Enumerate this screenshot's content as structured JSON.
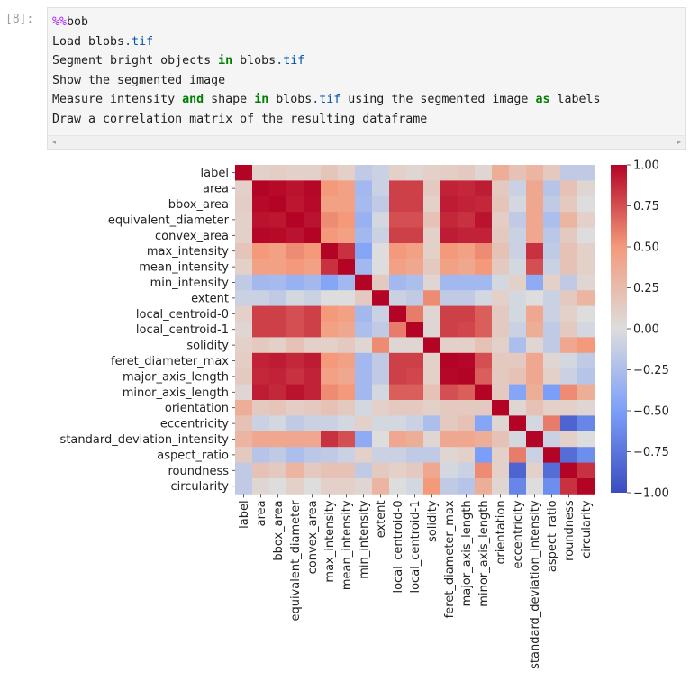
{
  "cell": {
    "prompt": "[8]:",
    "lines": [
      [
        {
          "t": "%%",
          "c": "magic"
        },
        {
          "t": "bob",
          "c": ""
        }
      ],
      [
        {
          "t": "Load blobs",
          "c": ""
        },
        {
          "t": ".tif",
          "c": "attr"
        }
      ],
      [
        {
          "t": "Segment bright objects ",
          "c": ""
        },
        {
          "t": "in",
          "c": "kw"
        },
        {
          "t": " blobs",
          "c": ""
        },
        {
          "t": ".tif",
          "c": "attr"
        }
      ],
      [
        {
          "t": "Show the segmented image",
          "c": ""
        }
      ],
      [
        {
          "t": "Measure intensity ",
          "c": ""
        },
        {
          "t": "and",
          "c": "kw"
        },
        {
          "t": " shape ",
          "c": ""
        },
        {
          "t": "in",
          "c": "kw"
        },
        {
          "t": " blobs",
          "c": ""
        },
        {
          "t": ".tif",
          "c": "attr"
        },
        {
          "t": " using the segmented image ",
          "c": ""
        },
        {
          "t": "as",
          "c": "kw"
        },
        {
          "t": " labels",
          "c": ""
        }
      ],
      [
        {
          "t": "Draw a correlation matrix of the resulting dataframe",
          "c": ""
        }
      ]
    ],
    "scroll_left": "◂",
    "scroll_right": "▸"
  },
  "chart_data": {
    "type": "heatmap",
    "colormap": "coolwarm",
    "vmin": -1.0,
    "vmax": 1.0,
    "colorbar_ticks": [
      "1.00",
      "0.75",
      "0.50",
      "0.25",
      "0.00",
      "−0.25",
      "−0.50",
      "−0.75",
      "−1.00"
    ],
    "colorbar_tick_values": [
      1.0,
      0.75,
      0.5,
      0.25,
      0.0,
      -0.25,
      -0.5,
      -0.75,
      -1.0
    ],
    "labels": [
      "label",
      "area",
      "bbox_area",
      "equivalent_diameter",
      "convex_area",
      "max_intensity",
      "mean_intensity",
      "min_intensity",
      "extent",
      "local_centroid-0",
      "local_centroid-1",
      "solidity",
      "feret_diameter_max",
      "major_axis_length",
      "minor_axis_length",
      "orientation",
      "eccentricity",
      "standard_deviation_intensity",
      "aspect_ratio",
      "roundness",
      "circularity"
    ],
    "matrix": [
      [
        1.0,
        0.1,
        0.12,
        0.1,
        0.1,
        0.18,
        0.1,
        -0.15,
        -0.1,
        0.1,
        0.05,
        0.1,
        0.12,
        0.15,
        0.05,
        0.35,
        0.2,
        0.3,
        0.15,
        -0.15,
        -0.15
      ],
      [
        0.1,
        1.0,
        0.98,
        0.95,
        0.99,
        0.5,
        0.45,
        -0.3,
        -0.1,
        0.8,
        0.8,
        0.15,
        0.9,
        0.88,
        0.92,
        0.15,
        -0.1,
        0.4,
        -0.2,
        0.2,
        0.05
      ],
      [
        0.12,
        0.98,
        1.0,
        0.94,
        0.98,
        0.45,
        0.45,
        -0.28,
        -0.15,
        0.8,
        0.8,
        0.1,
        0.92,
        0.9,
        0.88,
        0.18,
        -0.05,
        0.4,
        -0.15,
        0.15,
        0.0
      ],
      [
        0.1,
        0.95,
        0.94,
        1.0,
        0.95,
        0.55,
        0.5,
        -0.35,
        -0.05,
        0.75,
        0.75,
        0.2,
        0.88,
        0.85,
        0.95,
        0.12,
        -0.15,
        0.4,
        -0.25,
        0.3,
        0.1
      ],
      [
        0.1,
        0.99,
        0.98,
        0.95,
        1.0,
        0.5,
        0.45,
        -0.3,
        -0.1,
        0.8,
        0.8,
        0.1,
        0.92,
        0.9,
        0.9,
        0.15,
        -0.1,
        0.4,
        -0.18,
        0.15,
        0.0
      ],
      [
        0.18,
        0.5,
        0.45,
        0.55,
        0.5,
        1.0,
        0.85,
        -0.45,
        0.0,
        0.5,
        0.45,
        0.1,
        0.5,
        0.45,
        0.55,
        0.2,
        -0.1,
        0.85,
        -0.15,
        0.2,
        0.1
      ],
      [
        0.1,
        0.45,
        0.45,
        0.5,
        0.45,
        0.85,
        1.0,
        -0.3,
        0.0,
        0.45,
        0.4,
        0.15,
        0.45,
        0.4,
        0.5,
        0.15,
        -0.05,
        0.75,
        -0.1,
        0.2,
        0.1
      ],
      [
        -0.15,
        -0.3,
        -0.28,
        -0.35,
        -0.3,
        -0.45,
        -0.3,
        1.0,
        0.15,
        -0.3,
        -0.25,
        0.05,
        -0.3,
        -0.3,
        -0.3,
        -0.05,
        0.1,
        -0.4,
        0.1,
        -0.15,
        0.05
      ],
      [
        -0.1,
        -0.1,
        -0.15,
        -0.05,
        -0.1,
        0.0,
        0.0,
        0.15,
        1.0,
        -0.1,
        -0.15,
        0.55,
        -0.15,
        -0.15,
        -0.05,
        0.1,
        -0.05,
        0.0,
        -0.1,
        0.15,
        0.3
      ],
      [
        0.1,
        0.8,
        0.8,
        0.75,
        0.8,
        0.5,
        0.45,
        -0.3,
        -0.1,
        1.0,
        0.6,
        0.05,
        0.8,
        0.8,
        0.7,
        0.15,
        -0.05,
        0.4,
        -0.1,
        0.1,
        0.0
      ],
      [
        0.05,
        0.8,
        0.8,
        0.75,
        0.8,
        0.45,
        0.4,
        -0.25,
        -0.15,
        0.6,
        1.0,
        0.05,
        0.8,
        0.78,
        0.7,
        0.15,
        -0.1,
        0.35,
        -0.15,
        0.15,
        -0.05
      ],
      [
        0.1,
        0.15,
        0.1,
        0.2,
        0.1,
        0.1,
        0.15,
        0.05,
        0.55,
        0.05,
        0.05,
        1.0,
        0.1,
        0.1,
        0.2,
        0.1,
        -0.25,
        0.05,
        -0.15,
        0.4,
        0.5
      ],
      [
        0.12,
        0.9,
        0.92,
        0.88,
        0.92,
        0.5,
        0.45,
        -0.3,
        -0.15,
        0.8,
        0.8,
        0.1,
        1.0,
        0.99,
        0.75,
        0.15,
        0.15,
        0.4,
        0.05,
        -0.05,
        -0.15
      ],
      [
        0.15,
        0.88,
        0.9,
        0.85,
        0.9,
        0.45,
        0.4,
        -0.3,
        -0.15,
        0.8,
        0.78,
        0.1,
        0.99,
        1.0,
        0.7,
        0.15,
        0.2,
        0.4,
        0.1,
        -0.1,
        -0.2
      ],
      [
        0.05,
        0.92,
        0.88,
        0.95,
        0.9,
        0.55,
        0.5,
        -0.3,
        -0.05,
        0.7,
        0.7,
        0.2,
        0.75,
        0.7,
        1.0,
        0.15,
        -0.45,
        0.35,
        -0.5,
        0.55,
        0.35
      ],
      [
        0.35,
        0.15,
        0.18,
        0.12,
        0.15,
        0.2,
        0.15,
        -0.05,
        0.1,
        0.15,
        0.15,
        0.1,
        0.15,
        0.15,
        0.15,
        1.0,
        0.05,
        0.2,
        0.1,
        0.1,
        0.05
      ],
      [
        0.2,
        -0.1,
        -0.05,
        -0.15,
        -0.1,
        -0.1,
        -0.05,
        0.1,
        -0.05,
        -0.05,
        -0.1,
        -0.25,
        0.15,
        0.2,
        -0.45,
        0.05,
        1.0,
        -0.05,
        0.6,
        -0.85,
        -0.65
      ],
      [
        0.3,
        0.4,
        0.4,
        0.4,
        0.4,
        0.85,
        0.75,
        -0.4,
        0.0,
        0.4,
        0.35,
        0.05,
        0.4,
        0.4,
        0.35,
        0.2,
        -0.05,
        1.0,
        -0.1,
        0.1,
        0.0
      ],
      [
        0.15,
        -0.2,
        -0.15,
        -0.25,
        -0.18,
        -0.15,
        -0.1,
        0.1,
        -0.1,
        -0.1,
        -0.15,
        -0.15,
        0.05,
        0.1,
        -0.5,
        0.1,
        0.6,
        -0.1,
        1.0,
        -0.8,
        -0.6
      ],
      [
        -0.15,
        0.2,
        0.15,
        0.3,
        0.15,
        0.2,
        0.2,
        -0.15,
        0.15,
        0.1,
        0.15,
        0.4,
        -0.05,
        -0.1,
        0.55,
        0.1,
        -0.85,
        0.1,
        -0.8,
        1.0,
        0.85
      ],
      [
        -0.15,
        0.05,
        0.0,
        0.1,
        0.0,
        0.1,
        0.1,
        0.05,
        0.3,
        0.0,
        -0.05,
        0.5,
        -0.15,
        -0.2,
        0.35,
        0.05,
        -0.65,
        0.0,
        -0.6,
        0.85,
        1.0
      ]
    ]
  }
}
